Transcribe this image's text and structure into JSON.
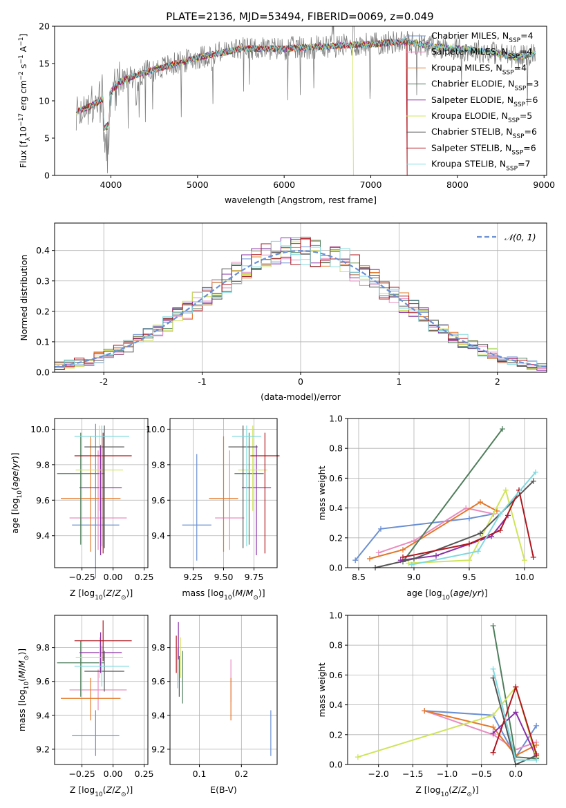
{
  "colors": {
    "Chabrier MILES": "#6a8fd3",
    "Salpeter MILES": "#e88cc0",
    "Kroupa MILES": "#e2782a",
    "Chabrier ELODIE": "#4f7e5c",
    "Salpeter ELODIE": "#8b2fa8",
    "Kroupa ELODIE": "#cfe45a",
    "Chabrier STELIB": "#555555",
    "Salpeter STELIB": "#b0161e",
    "Kroupa STELIB": "#7fd9df"
  },
  "chart_data": [
    {
      "id": "spectrum",
      "type": "line",
      "title": "PLATE=2136, MJD=53494, FIBERID=0069, z=0.049",
      "xlabel": "wavelength [Angstrom, rest frame]",
      "ylabel": "Flux [f",
      "ylabel_parts": [
        "Flux [f",
        "λ",
        "10",
        "−17",
        " erg cm",
        "−2",
        " s",
        "−1",
        " A",
        "−1",
        "]"
      ],
      "xlim": [
        3350,
        9030
      ],
      "ylim": [
        0,
        20
      ],
      "xticks": [
        4000,
        5000,
        6000,
        7000,
        8000,
        9000
      ],
      "yticks": [
        0,
        5,
        10,
        15,
        20
      ],
      "legend_position": "upper-right",
      "legend": [
        {
          "name": "Chabrier MILES, N",
          "sub": "SSP",
          "val": "=4"
        },
        {
          "name": "Salpeter MILES, N",
          "sub": "SSP",
          "val": "=4"
        },
        {
          "name": "Kroupa MILES, N",
          "sub": "SSP",
          "val": "=4"
        },
        {
          "name": "Chabrier ELODIE, N",
          "sub": "SSP",
          "val": "=3"
        },
        {
          "name": "Salpeter ELODIE, N",
          "sub": "SSP",
          "val": "=6"
        },
        {
          "name": "Kroupa ELODIE, N",
          "sub": "SSP",
          "val": "=5"
        },
        {
          "name": "Chabrier STELIB, N",
          "sub": "SSP",
          "val": "=6"
        },
        {
          "name": "Salpeter STELIB, N",
          "sub": "SSP",
          "val": "=6"
        },
        {
          "name": "Kroupa STELIB, N",
          "sub": "SSP",
          "val": "=7"
        }
      ],
      "continuum": [
        [
          3600,
          8.5
        ],
        [
          3800,
          9.5
        ],
        [
          3950,
          10.5
        ],
        [
          4100,
          12.5
        ],
        [
          4300,
          13.5
        ],
        [
          4600,
          14.5
        ],
        [
          5000,
          15.8
        ],
        [
          5500,
          17.0
        ],
        [
          6000,
          17.0
        ],
        [
          6500,
          17.3
        ],
        [
          7000,
          17.6
        ],
        [
          7400,
          18.0
        ],
        [
          7700,
          17.3
        ],
        [
          8000,
          17.0
        ],
        [
          8400,
          16.5
        ],
        [
          8700,
          15.8
        ],
        [
          8900,
          16.5
        ]
      ],
      "observed_range": [
        3600,
        8900
      ],
      "dropouts": [
        {
          "series": "Kroupa ELODIE",
          "x": 6800
        },
        {
          "series": "Salpeter STELIB",
          "x": 7420
        }
      ]
    },
    {
      "id": "residuals",
      "type": "step",
      "xlabel": "(data-model)/error",
      "ylabel": "Normed distribution",
      "xlim": [
        -2.5,
        2.5
      ],
      "ylim": [
        0,
        0.49
      ],
      "xticks": [
        -2,
        -1,
        0,
        1,
        2
      ],
      "yticks": [
        0.0,
        0.1,
        0.2,
        0.3,
        0.4
      ],
      "bin_width": 0.1,
      "reference_label": "𝒩(0, 1)",
      "legend_position": "upper-right"
    },
    {
      "id": "age_vs_Z",
      "type": "errorbar",
      "xlabel": "Z [log10(Z/Z⊙)]",
      "ylabel": "age  [log10(age/yr)]",
      "xlim": [
        -0.47,
        0.28
      ],
      "ylim": [
        9.22,
        10.06
      ],
      "xticks": [
        -0.25,
        0.0,
        0.25
      ],
      "xticklabels": [
        "−0.25",
        "0.00",
        "0.25"
      ],
      "yticks": [
        9.4,
        9.6,
        9.8,
        10.0
      ],
      "points": [
        {
          "series": "Chabrier MILES",
          "x": -0.14,
          "xerr": 0.19,
          "y": 9.46,
          "yerr": [
            0.3,
            0.57
          ]
        },
        {
          "series": "Salpeter MILES",
          "x": -0.12,
          "xerr": 0.23,
          "y": 9.5,
          "yerr": [
            0.18,
            0.38
          ]
        },
        {
          "series": "Kroupa MILES",
          "x": -0.18,
          "xerr": 0.24,
          "y": 9.61,
          "yerr": [
            0.3,
            0.35
          ]
        },
        {
          "series": "Chabrier ELODIE",
          "x": -0.26,
          "xerr": 0.19,
          "y": 9.75,
          "yerr": [
            0.4,
            0.23
          ]
        },
        {
          "series": "Salpeter ELODIE",
          "x": -0.1,
          "xerr": 0.17,
          "y": 9.67,
          "yerr": [
            0.38,
            0.24
          ]
        },
        {
          "series": "Kroupa ELODIE",
          "x": -0.11,
          "xerr": 0.19,
          "y": 9.77,
          "yerr": [
            0.23,
            0.25
          ]
        },
        {
          "series": "Chabrier STELIB",
          "x": -0.07,
          "xerr": 0.16,
          "y": 9.9,
          "yerr": [
            0.57,
            0.12
          ]
        },
        {
          "series": "Salpeter STELIB",
          "x": -0.08,
          "xerr": 0.23,
          "y": 9.85,
          "yerr": [
            0.55,
            0.13
          ]
        },
        {
          "series": "Kroupa STELIB",
          "x": -0.09,
          "xerr": 0.22,
          "y": 9.96,
          "yerr": [
            0.62,
            0.06
          ]
        }
      ]
    },
    {
      "id": "age_vs_mass",
      "type": "errorbar",
      "xlabel": "mass [log10(M/M⊙)]",
      "xlim": [
        9.06,
        9.94
      ],
      "ylim": [
        9.22,
        10.06
      ],
      "xticks": [
        9.25,
        9.5,
        9.75
      ],
      "xticklabels": [
        "9.25",
        "9.50",
        "9.75"
      ],
      "yticks": [
        9.4,
        9.6,
        9.8,
        10.0
      ],
      "points": [
        {
          "series": "Chabrier MILES",
          "x": 9.28,
          "xerr": 0.12,
          "y": 9.46,
          "yerr": [
            0.2,
            0.4
          ]
        },
        {
          "series": "Salpeter MILES",
          "x": 9.55,
          "xerr": 0.12,
          "y": 9.5,
          "yerr": [
            0.18,
            0.38
          ]
        },
        {
          "series": "Kroupa MILES",
          "x": 9.5,
          "xerr": 0.12,
          "y": 9.61,
          "yerr": [
            0.3,
            0.35
          ]
        },
        {
          "series": "Chabrier ELODIE",
          "x": 9.71,
          "xerr": 0.12,
          "y": 9.75,
          "yerr": [
            0.4,
            0.23
          ]
        },
        {
          "series": "Salpeter ELODIE",
          "x": 9.77,
          "xerr": 0.12,
          "y": 9.67,
          "yerr": [
            0.38,
            0.24
          ]
        },
        {
          "series": "Kroupa ELODIE",
          "x": 9.74,
          "xerr": 0.12,
          "y": 9.77,
          "yerr": [
            0.23,
            0.25
          ]
        },
        {
          "series": "Chabrier STELIB",
          "x": 9.66,
          "xerr": 0.12,
          "y": 9.9,
          "yerr": [
            0.57,
            0.12
          ]
        },
        {
          "series": "Salpeter STELIB",
          "x": 9.84,
          "xerr": 0.12,
          "y": 9.85,
          "yerr": [
            0.55,
            0.13
          ]
        },
        {
          "series": "Kroupa STELIB",
          "x": 9.69,
          "xerr": 0.12,
          "y": 9.96,
          "yerr": [
            0.62,
            0.06
          ]
        }
      ]
    },
    {
      "id": "weight_vs_age",
      "type": "line",
      "xlabel": "age  [log10(age/yr)]",
      "ylabel": "mass weight",
      "xlim": [
        8.4,
        10.2
      ],
      "ylim": [
        0.0,
        1.0
      ],
      "xticks": [
        8.5,
        9.0,
        9.5,
        10.0
      ],
      "xticklabels": [
        "8.5",
        "9.0",
        "9.5",
        "10.0"
      ],
      "yticks": [
        0.0,
        0.2,
        0.4,
        0.6,
        0.8,
        1.0
      ],
      "series": [
        {
          "name": "Chabrier MILES",
          "x": [
            8.47,
            8.7,
            9.5,
            9.72
          ],
          "y": [
            0.05,
            0.26,
            0.33,
            0.36
          ]
        },
        {
          "name": "Salpeter MILES",
          "x": [
            8.68,
            9.0,
            9.47,
            9.72
          ],
          "y": [
            0.1,
            0.18,
            0.4,
            0.36
          ]
        },
        {
          "name": "Kroupa MILES",
          "x": [
            8.6,
            8.9,
            9.6,
            9.75
          ],
          "y": [
            0.06,
            0.12,
            0.44,
            0.38
          ]
        },
        {
          "name": "Chabrier ELODIE",
          "x": [
            8.9,
            9.8
          ],
          "y": [
            0.04,
            0.93
          ]
        },
        {
          "name": "Salpeter ELODIE",
          "x": [
            8.88,
            9.2,
            9.7,
            9.85
          ],
          "y": [
            0.05,
            0.08,
            0.21,
            0.35
          ]
        },
        {
          "name": "Kroupa ELODIE",
          "x": [
            8.95,
            9.5,
            9.83,
            10.0
          ],
          "y": [
            0.03,
            0.05,
            0.52,
            0.05
          ]
        },
        {
          "name": "Chabrier STELIB",
          "x": [
            8.65,
            9.0,
            9.6,
            10.08
          ],
          "y": [
            0.0,
            0.06,
            0.23,
            0.58
          ]
        },
        {
          "name": "Salpeter STELIB",
          "x": [
            8.9,
            9.5,
            9.78,
            9.95,
            10.08
          ],
          "y": [
            0.07,
            0.16,
            0.25,
            0.52,
            0.07
          ]
        },
        {
          "name": "Kroupa STELIB",
          "x": [
            8.98,
            9.58,
            9.78,
            10.1
          ],
          "y": [
            0.02,
            0.11,
            0.36,
            0.64
          ]
        }
      ]
    },
    {
      "id": "mass_vs_Z",
      "type": "errorbar",
      "xlabel": "Z [log10(Z/Z⊙)]",
      "ylabel": "mass [log10(M/M⊙)]",
      "xlim": [
        -0.47,
        0.28
      ],
      "ylim": [
        9.11,
        9.99
      ],
      "xticks": [
        -0.25,
        0.0,
        0.25
      ],
      "xticklabels": [
        "−0.25",
        "0.00",
        "0.25"
      ],
      "yticks": [
        9.2,
        9.4,
        9.6,
        9.8
      ],
      "points": [
        {
          "series": "Chabrier MILES",
          "x": -0.14,
          "xerr": 0.19,
          "y": 9.28,
          "yerr": [
            0.12,
            0.15
          ]
        },
        {
          "series": "Salpeter MILES",
          "x": -0.12,
          "xerr": 0.23,
          "y": 9.55,
          "yerr": [
            0.12,
            0.12
          ]
        },
        {
          "series": "Kroupa MILES",
          "x": -0.18,
          "xerr": 0.24,
          "y": 9.5,
          "yerr": [
            0.13,
            0.12
          ]
        },
        {
          "series": "Chabrier ELODIE",
          "x": -0.26,
          "xerr": 0.19,
          "y": 9.71,
          "yerr": [
            0.2,
            0.13
          ]
        },
        {
          "series": "Salpeter ELODIE",
          "x": -0.1,
          "xerr": 0.17,
          "y": 9.77,
          "yerr": [
            0.12,
            0.12
          ]
        },
        {
          "series": "Kroupa ELODIE",
          "x": -0.11,
          "xerr": 0.19,
          "y": 9.74,
          "yerr": [
            0.12,
            0.12
          ]
        },
        {
          "series": "Chabrier STELIB",
          "x": -0.07,
          "xerr": 0.16,
          "y": 9.66,
          "yerr": [
            0.12,
            0.12
          ]
        },
        {
          "series": "Salpeter STELIB",
          "x": -0.08,
          "xerr": 0.23,
          "y": 9.84,
          "yerr": [
            0.12,
            0.12
          ]
        },
        {
          "series": "Kroupa STELIB",
          "x": -0.09,
          "xerr": 0.22,
          "y": 9.69,
          "yerr": [
            0.12,
            0.12
          ]
        }
      ]
    },
    {
      "id": "mass_vs_ebv",
      "type": "errorbar",
      "xlabel": "E(B-V)",
      "xlim": [
        0.03,
        0.285
      ],
      "ylim": [
        9.11,
        9.99
      ],
      "xticks": [
        0.1,
        0.2
      ],
      "xticklabels": [
        "0.1",
        "0.2"
      ],
      "yticks": [
        9.2,
        9.4,
        9.6,
        9.8
      ],
      "points": [
        {
          "series": "Chabrier MILES",
          "x": 0.27,
          "xerr": 0,
          "y": 9.28,
          "yerr": [
            0.12,
            0.15
          ]
        },
        {
          "series": "Salpeter MILES",
          "x": 0.175,
          "xerr": 0,
          "y": 9.6,
          "yerr": [
            0.12,
            0.13
          ]
        },
        {
          "series": "Kroupa MILES",
          "x": 0.175,
          "xerr": 0,
          "y": 9.5,
          "yerr": [
            0.13,
            0.12
          ]
        },
        {
          "series": "Chabrier ELODIE",
          "x": 0.06,
          "xerr": 0,
          "y": 9.65,
          "yerr": [
            0.18,
            0.13
          ]
        },
        {
          "series": "Salpeter ELODIE",
          "x": 0.05,
          "xerr": 0,
          "y": 9.85,
          "yerr": [
            0.12,
            0.1
          ]
        },
        {
          "series": "Kroupa ELODIE",
          "x": 0.055,
          "xerr": 0,
          "y": 9.74,
          "yerr": [
            0.12,
            0.12
          ]
        },
        {
          "series": "Chabrier STELIB",
          "x": 0.052,
          "xerr": 0,
          "y": 9.63,
          "yerr": [
            0.12,
            0.12
          ]
        },
        {
          "series": "Salpeter STELIB",
          "x": 0.045,
          "xerr": 0,
          "y": 9.76,
          "yerr": [
            0.11,
            0.11
          ]
        },
        {
          "series": "Kroupa STELIB",
          "x": 0.048,
          "xerr": 0,
          "y": 9.68,
          "yerr": [
            0.12,
            0.12
          ]
        }
      ]
    },
    {
      "id": "weight_vs_Z",
      "type": "line",
      "xlabel": "Z [log10(Z/Z⊙)]",
      "ylabel": "mass weight",
      "xlim": [
        -2.45,
        0.45
      ],
      "ylim": [
        0.0,
        1.0
      ],
      "xticks": [
        -2.0,
        -1.5,
        -1.0,
        -0.5,
        0.0
      ],
      "xticklabels": [
        "−2.0",
        "−1.5",
        "−1.0",
        "−0.5",
        "0.0"
      ],
      "yticks": [
        0.0,
        0.2,
        0.4,
        0.6,
        0.8,
        1.0
      ],
      "series": [
        {
          "name": "Chabrier MILES",
          "x": [
            -1.33,
            -0.33,
            0.0,
            0.3
          ],
          "y": [
            0.36,
            0.33,
            0.05,
            0.26
          ]
        },
        {
          "name": "Salpeter MILES",
          "x": [
            -1.33,
            -0.33,
            0.0,
            0.3
          ],
          "y": [
            0.36,
            0.2,
            0.1,
            0.15
          ]
        },
        {
          "name": "Kroupa MILES",
          "x": [
            -1.33,
            -0.33,
            0.0,
            0.3
          ],
          "y": [
            0.36,
            0.25,
            0.06,
            0.13
          ]
        },
        {
          "name": "Chabrier ELODIE",
          "x": [
            -0.33,
            0.0,
            0.3
          ],
          "y": [
            0.93,
            0.05,
            0.04
          ]
        },
        {
          "name": "Salpeter ELODIE",
          "x": [
            -0.33,
            0.0,
            0.3
          ],
          "y": [
            0.21,
            0.35,
            0.05
          ]
        },
        {
          "name": "Kroupa ELODIE",
          "x": [
            -2.3,
            -0.33,
            0.0,
            0.3
          ],
          "y": [
            0.05,
            0.33,
            0.52,
            0.05
          ]
        },
        {
          "name": "Chabrier STELIB",
          "x": [
            -0.33,
            0.0,
            0.3
          ],
          "y": [
            0.58,
            0.0,
            0.06
          ]
        },
        {
          "name": "Salpeter STELIB",
          "x": [
            -0.33,
            0.0,
            0.3
          ],
          "y": [
            0.08,
            0.52,
            0.07
          ]
        },
        {
          "name": "Kroupa STELIB",
          "x": [
            -0.33,
            0.0,
            0.3
          ],
          "y": [
            0.64,
            0.03,
            0.03
          ]
        }
      ]
    }
  ]
}
